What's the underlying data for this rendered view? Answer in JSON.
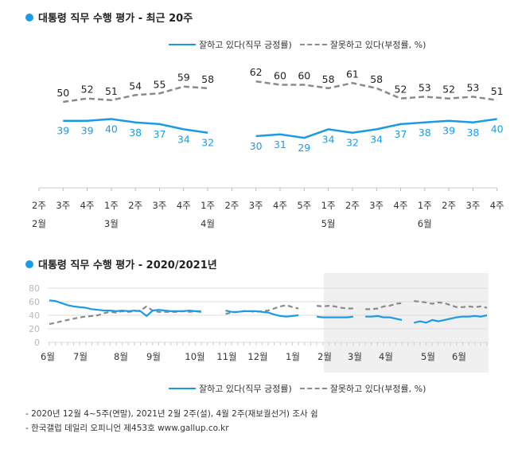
{
  "colors": {
    "positive": "#1a9be6",
    "negative": "#8a8a8a",
    "shade": "#f0f0f0",
    "grid": "#dddddd"
  },
  "legend": {
    "positive_label": "잘하고 있다(직무 긍정률)",
    "negative_label": "잘못하고 있다(부정률, %)"
  },
  "footnotes": [
    "- 2020년 12월 4~5주(연말), 2021년 2월 2주(설), 4월 2주(재보궐선거) 조사 쉼",
    "- 한국갤럽 데일리 오피니언 제453호 www.gallup.co.kr"
  ],
  "chart_data": [
    {
      "type": "line",
      "title": "대통령 직무 수행 평가 - 최근 20주",
      "categories": [
        "2주",
        "3주",
        "4주",
        "1주",
        "2주",
        "3주",
        "4주",
        "1주",
        "2주",
        "3주",
        "4주",
        "5주",
        "1주",
        "2주",
        "3주",
        "4주",
        "1주",
        "2주",
        "3주",
        "4주"
      ],
      "month_labels": [
        {
          "index": 0,
          "label": "2월"
        },
        {
          "index": 3,
          "label": "3월"
        },
        {
          "index": 7,
          "label": "4월"
        },
        {
          "index": 12,
          "label": "5월"
        },
        {
          "index": 16,
          "label": "6월"
        }
      ],
      "series": [
        {
          "name": "잘하고 있다(직무 긍정률)",
          "values": [
            null,
            39,
            39,
            40,
            38,
            37,
            34,
            32,
            null,
            30,
            31,
            29,
            34,
            32,
            34,
            37,
            38,
            39,
            38,
            40
          ]
        },
        {
          "name": "잘못하고 있다(부정률, %)",
          "values": [
            null,
            50,
            52,
            51,
            54,
            55,
            59,
            58,
            null,
            62,
            60,
            60,
            58,
            61,
            58,
            52,
            53,
            52,
            53,
            51
          ]
        }
      ],
      "ylim": [
        20,
        70
      ],
      "legend_position": "top-right"
    },
    {
      "type": "line",
      "title": "대통령 직무 수행 평가 - 2020/2021년",
      "month_ticks": [
        "6월",
        "7월",
        "8월",
        "9월",
        "10월",
        "11월",
        "12월",
        "1월",
        "2월",
        "3월",
        "4월",
        "5월",
        "6월"
      ],
      "yticks": [
        0,
        20,
        40,
        60,
        80
      ],
      "ylim": [
        0,
        80
      ],
      "shaded_period": "2021년 2월~6월",
      "series": [
        {
          "name": "잘하고 있다(직무 긍정률)",
          "values": [
            62,
            61,
            58,
            55,
            53,
            52,
            51,
            49,
            48,
            47,
            47,
            46,
            47,
            46,
            47,
            46,
            39,
            47,
            48,
            47,
            46,
            46,
            46,
            47,
            46,
            45,
            null,
            null,
            null,
            47,
            45,
            45,
            46,
            46,
            46,
            45,
            44,
            41,
            39,
            38,
            39,
            40,
            null,
            null,
            38,
            37,
            37,
            37,
            37,
            37,
            38,
            null,
            38,
            38,
            39,
            37,
            37,
            35,
            33,
            null,
            29,
            31,
            29,
            33,
            31,
            33,
            35,
            37,
            38,
            38,
            39,
            38,
            40
          ]
        },
        {
          "name": "잘못하고 있다(부정률, %)",
          "values": [
            27,
            29,
            31,
            33,
            35,
            37,
            38,
            39,
            40,
            43,
            45,
            44,
            46,
            45,
            46,
            47,
            53,
            47,
            45,
            45,
            45,
            45,
            46,
            45,
            46,
            46,
            null,
            null,
            null,
            42,
            44,
            45,
            46,
            46,
            45,
            46,
            47,
            50,
            53,
            55,
            52,
            50,
            null,
            null,
            54,
            53,
            54,
            53,
            51,
            50,
            50,
            null,
            49,
            49,
            50,
            53,
            54,
            57,
            58,
            null,
            61,
            60,
            59,
            57,
            59,
            58,
            55,
            52,
            52,
            53,
            52,
            53,
            51
          ]
        }
      ],
      "legend_position": "bottom-right"
    }
  ]
}
